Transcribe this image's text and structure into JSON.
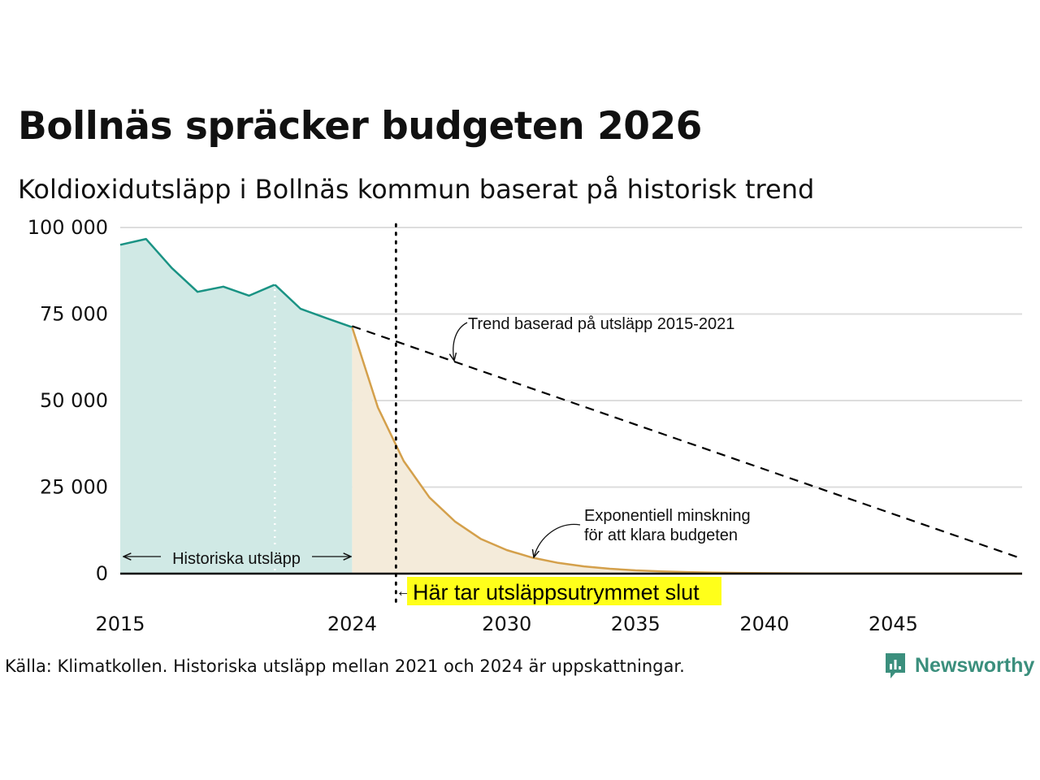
{
  "title": "Bollnäs spräcker budgeten 2026",
  "subtitle": "Koldioxidutsläpp i Bollnäs kommun baserat på historisk trend",
  "source": "Källa: Klimatkollen. Historiska utsläpp mellan 2021 och 2024 är uppskattningar.",
  "brand": "Newsworthy",
  "colors": {
    "historical_line": "#1a9384",
    "historical_fill": "#d0e9e5",
    "budget_line": "#d4a04b",
    "budget_fill": "#f4ebda",
    "gridline": "#dddddd",
    "highlight": "#ffff1a",
    "brand": "#3b8f7d"
  },
  "chart_data": {
    "type": "area",
    "title": "Bollnäs spräcker budgeten 2026",
    "subtitle": "Koldioxidutsläpp i Bollnäs kommun baserat på historisk trend",
    "xlim": [
      2015,
      2050
    ],
    "ylim": [
      0,
      100000
    ],
    "x_ticks": [
      2015,
      2024,
      2030,
      2035,
      2040,
      2045
    ],
    "x_tick_labels": [
      "2015",
      "2024",
      "2030",
      "2035",
      "2040",
      "2045"
    ],
    "y_ticks": [
      0,
      25000,
      50000,
      75000,
      100000
    ],
    "y_tick_labels": [
      "0",
      "25 000",
      "50 000",
      "75 000",
      "100 000"
    ],
    "grid": true,
    "series": [
      {
        "name": "Historiska utsläpp",
        "style": "area",
        "x": [
          2015,
          2016,
          2017,
          2018,
          2019,
          2020,
          2021,
          2022,
          2023,
          2024
        ],
        "values": [
          95000,
          96700,
          88300,
          81400,
          82900,
          80300,
          83500,
          76500,
          73800,
          71200
        ]
      },
      {
        "name": "Exponentiell minskning för att klara budgeten",
        "style": "area",
        "x": [
          2024,
          2025,
          2026,
          2027,
          2028,
          2029,
          2030,
          2031,
          2032,
          2033,
          2034,
          2035,
          2036,
          2037,
          2038,
          2039,
          2040,
          2042,
          2045,
          2050
        ],
        "values": [
          71200,
          48000,
          32500,
          22000,
          15000,
          10000,
          6800,
          4600,
          3100,
          2100,
          1400,
          950,
          650,
          450,
          300,
          200,
          130,
          70,
          40,
          10
        ]
      },
      {
        "name": "Trend baserad på utsläpp 2015-2021",
        "style": "dashed",
        "x": [
          2024,
          2050
        ],
        "values": [
          71500,
          4300
        ]
      }
    ],
    "markers": [
      {
        "type": "vline",
        "x": 2021,
        "style": "dotted-white"
      },
      {
        "type": "vline",
        "x": 2025.7,
        "style": "dotted-black"
      }
    ],
    "annotations": {
      "historical_range_label": "Historiska utsläpp",
      "trend_label": "Trend baserad på utsläpp 2015-2021",
      "exp_label_line1": "Exponentiell minskning",
      "exp_label_line2": "för att klara budgeten",
      "budget_end_label": "Här tar utsläppsutrymmet slut",
      "budget_end_arrow": "←"
    }
  }
}
